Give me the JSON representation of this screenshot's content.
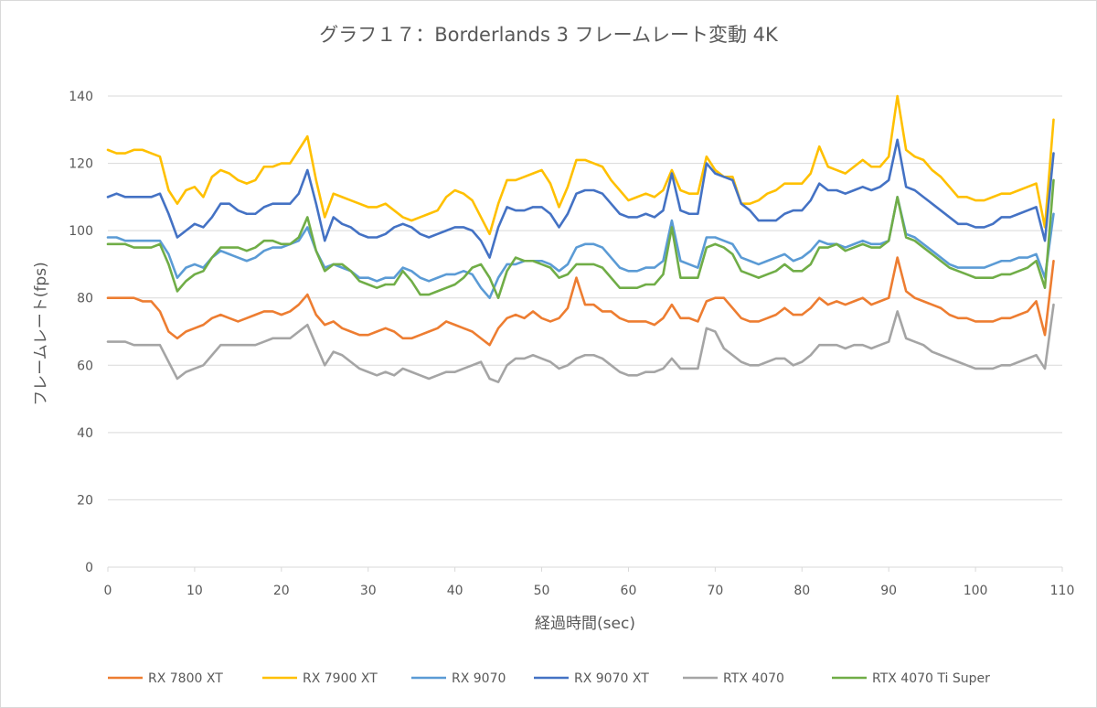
{
  "chart_data": {
    "type": "line",
    "title": "グラフ１７：Borderlands 3 フレームレート変動 4K",
    "xlabel": "経過時間(sec)",
    "ylabel": "フレームレート(fps)",
    "xlim": [
      0,
      110
    ],
    "ylim": [
      0,
      140
    ],
    "x_ticks": [
      0,
      10,
      20,
      30,
      40,
      50,
      60,
      70,
      80,
      90,
      100,
      110
    ],
    "y_ticks": [
      0,
      20,
      40,
      60,
      80,
      100,
      120,
      140
    ],
    "grid": "horizontal",
    "legend_position": "bottom",
    "x": [
      0,
      1,
      2,
      3,
      4,
      5,
      6,
      7,
      8,
      9,
      10,
      11,
      12,
      13,
      14,
      15,
      16,
      17,
      18,
      19,
      20,
      21,
      22,
      23,
      24,
      25,
      26,
      27,
      28,
      29,
      30,
      31,
      32,
      33,
      34,
      35,
      36,
      37,
      38,
      39,
      40,
      41,
      42,
      43,
      44,
      45,
      46,
      47,
      48,
      49,
      50,
      51,
      52,
      53,
      54,
      55,
      56,
      57,
      58,
      59,
      60,
      61,
      62,
      63,
      64,
      65,
      66,
      67,
      68,
      69,
      70,
      71,
      72,
      73,
      74,
      75,
      76,
      77,
      78,
      79,
      80,
      81,
      82,
      83,
      84,
      85,
      86,
      87,
      88,
      89,
      90,
      91,
      92,
      93,
      94,
      95,
      96,
      97,
      98,
      99,
      100,
      101,
      102,
      103,
      104,
      105,
      106,
      107,
      108,
      109
    ],
    "series": [
      {
        "name": "RX 7800 XT",
        "color": "#ED7D31",
        "values": [
          80,
          80,
          80,
          80,
          79,
          79,
          76,
          70,
          68,
          70,
          71,
          72,
          74,
          75,
          74,
          73,
          74,
          75,
          76,
          76,
          75,
          76,
          78,
          81,
          75,
          72,
          73,
          71,
          70,
          69,
          69,
          70,
          71,
          70,
          68,
          68,
          69,
          70,
          71,
          73,
          72,
          71,
          70,
          68,
          66,
          71,
          74,
          75,
          74,
          76,
          74,
          73,
          74,
          77,
          86,
          78,
          78,
          76,
          76,
          74,
          73,
          73,
          73,
          72,
          74,
          78,
          74,
          74,
          73,
          79,
          80,
          80,
          77,
          74,
          73,
          73,
          74,
          75,
          77,
          75,
          75,
          77,
          80,
          78,
          79,
          78,
          79,
          80,
          78,
          79,
          80,
          92,
          82,
          80,
          79,
          78,
          77,
          75,
          74,
          74,
          73,
          73,
          73,
          74,
          74,
          75,
          76,
          79,
          69,
          91
        ]
      },
      {
        "name": "RX 7900 XT",
        "color": "#FFC000",
        "values": [
          124,
          123,
          123,
          124,
          124,
          123,
          122,
          112,
          108,
          112,
          113,
          110,
          116,
          118,
          117,
          115,
          114,
          115,
          119,
          119,
          120,
          120,
          124,
          128,
          115,
          104,
          111,
          110,
          109,
          108,
          107,
          107,
          108,
          106,
          104,
          103,
          104,
          105,
          106,
          110,
          112,
          111,
          109,
          104,
          99,
          108,
          115,
          115,
          116,
          117,
          118,
          114,
          107,
          113,
          121,
          121,
          120,
          119,
          115,
          112,
          109,
          110,
          111,
          110,
          112,
          118,
          112,
          111,
          111,
          122,
          118,
          116,
          116,
          108,
          108,
          109,
          111,
          112,
          114,
          114,
          114,
          117,
          125,
          119,
          118,
          117,
          119,
          121,
          119,
          119,
          122,
          140,
          124,
          122,
          121,
          118,
          116,
          113,
          110,
          110,
          109,
          109,
          110,
          111,
          111,
          112,
          113,
          114,
          101,
          133
        ]
      },
      {
        "name": "RX 9070",
        "color": "#5B9BD5",
        "values": [
          98,
          98,
          97,
          97,
          97,
          97,
          97,
          93,
          86,
          89,
          90,
          89,
          92,
          94,
          93,
          92,
          91,
          92,
          94,
          95,
          95,
          96,
          97,
          101,
          94,
          89,
          90,
          89,
          88,
          86,
          86,
          85,
          86,
          86,
          89,
          88,
          86,
          85,
          86,
          87,
          87,
          88,
          87,
          83,
          80,
          86,
          90,
          90,
          91,
          91,
          91,
          90,
          88,
          90,
          95,
          96,
          96,
          95,
          92,
          89,
          88,
          88,
          89,
          89,
          91,
          103,
          91,
          90,
          89,
          98,
          98,
          97,
          96,
          92,
          91,
          90,
          91,
          92,
          93,
          91,
          92,
          94,
          97,
          96,
          96,
          95,
          96,
          97,
          96,
          96,
          97,
          110,
          99,
          98,
          96,
          94,
          92,
          90,
          89,
          89,
          89,
          89,
          90,
          91,
          91,
          92,
          92,
          93,
          86,
          105
        ]
      },
      {
        "name": "RX 9070 XT",
        "color": "#4472C4",
        "values": [
          110,
          111,
          110,
          110,
          110,
          110,
          111,
          105,
          98,
          100,
          102,
          101,
          104,
          108,
          108,
          106,
          105,
          105,
          107,
          108,
          108,
          108,
          111,
          118,
          108,
          97,
          104,
          102,
          101,
          99,
          98,
          98,
          99,
          101,
          102,
          101,
          99,
          98,
          99,
          100,
          101,
          101,
          100,
          97,
          92,
          101,
          107,
          106,
          106,
          107,
          107,
          105,
          101,
          105,
          111,
          112,
          112,
          111,
          108,
          105,
          104,
          104,
          105,
          104,
          106,
          117,
          106,
          105,
          105,
          120,
          117,
          116,
          115,
          108,
          106,
          103,
          103,
          103,
          105,
          106,
          106,
          109,
          114,
          112,
          112,
          111,
          112,
          113,
          112,
          113,
          115,
          127,
          113,
          112,
          110,
          108,
          106,
          104,
          102,
          102,
          101,
          101,
          102,
          104,
          104,
          105,
          106,
          107,
          97,
          123
        ]
      },
      {
        "name": "RTX 4070",
        "color": "#A5A5A5",
        "values": [
          67,
          67,
          67,
          66,
          66,
          66,
          66,
          61,
          56,
          58,
          59,
          60,
          63,
          66,
          66,
          66,
          66,
          66,
          67,
          68,
          68,
          68,
          70,
          72,
          66,
          60,
          64,
          63,
          61,
          59,
          58,
          57,
          58,
          57,
          59,
          58,
          57,
          56,
          57,
          58,
          58,
          59,
          60,
          61,
          56,
          55,
          60,
          62,
          62,
          63,
          62,
          61,
          59,
          60,
          62,
          63,
          63,
          62,
          60,
          58,
          57,
          57,
          58,
          58,
          59,
          62,
          59,
          59,
          59,
          71,
          70,
          65,
          63,
          61,
          60,
          60,
          61,
          62,
          62,
          60,
          61,
          63,
          66,
          66,
          66,
          65,
          66,
          66,
          65,
          66,
          67,
          76,
          68,
          67,
          66,
          64,
          63,
          62,
          61,
          60,
          59,
          59,
          59,
          60,
          60,
          61,
          62,
          63,
          59,
          78
        ]
      },
      {
        "name": "RTX 4070 Ti Super",
        "color": "#70AD47",
        "values": [
          96,
          96,
          96,
          95,
          95,
          95,
          96,
          90,
          82,
          85,
          87,
          88,
          92,
          95,
          95,
          95,
          94,
          95,
          97,
          97,
          96,
          96,
          98,
          104,
          94,
          88,
          90,
          90,
          88,
          85,
          84,
          83,
          84,
          84,
          88,
          85,
          81,
          81,
          82,
          83,
          84,
          86,
          89,
          90,
          86,
          80,
          88,
          92,
          91,
          91,
          90,
          89,
          86,
          87,
          90,
          90,
          90,
          89,
          86,
          83,
          83,
          83,
          84,
          84,
          87,
          101,
          86,
          86,
          86,
          95,
          96,
          95,
          93,
          88,
          87,
          86,
          87,
          88,
          90,
          88,
          88,
          90,
          95,
          95,
          96,
          94,
          95,
          96,
          95,
          95,
          97,
          110,
          98,
          97,
          95,
          93,
          91,
          89,
          88,
          87,
          86,
          86,
          86,
          87,
          87,
          88,
          89,
          91,
          83,
          115
        ]
      }
    ]
  }
}
